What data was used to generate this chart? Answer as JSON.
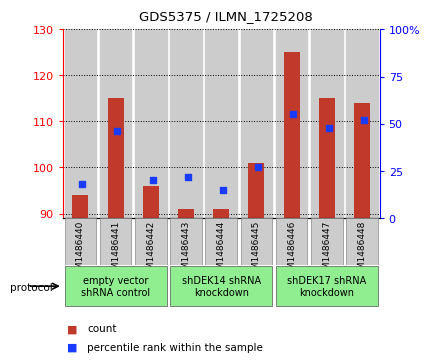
{
  "title": "GDS5375 / ILMN_1725208",
  "samples": [
    "GSM1486440",
    "GSM1486441",
    "GSM1486442",
    "GSM1486443",
    "GSM1486444",
    "GSM1486445",
    "GSM1486446",
    "GSM1486447",
    "GSM1486448"
  ],
  "counts": [
    94,
    115,
    96,
    91,
    91,
    101,
    125,
    115,
    114
  ],
  "percentile_ranks": [
    18,
    46,
    20,
    22,
    15,
    27,
    55,
    48,
    52
  ],
  "ylim_left": [
    89,
    130
  ],
  "ylim_right": [
    0,
    100
  ],
  "yticks_left": [
    90,
    100,
    110,
    120,
    130
  ],
  "yticks_right": [
    0,
    25,
    50,
    75,
    100
  ],
  "bar_color": "#c0392b",
  "dot_color": "#1a3aff",
  "col_bg_color": "#cccccc",
  "plot_bg_color": "#ffffff",
  "groups": [
    {
      "label": "empty vector\nshRNA control",
      "start": 0,
      "end": 3,
      "color": "#90ee90"
    },
    {
      "label": "shDEK14 shRNA\nknockdown",
      "start": 3,
      "end": 6,
      "color": "#90ee90"
    },
    {
      "label": "shDEK17 shRNA\nknockdown",
      "start": 6,
      "end": 9,
      "color": "#90ee90"
    }
  ],
  "bar_bottom": 89,
  "dot_size": 18,
  "protocol_label": "protocol",
  "legend_count": "count",
  "legend_percentile": "percentile rank within the sample"
}
